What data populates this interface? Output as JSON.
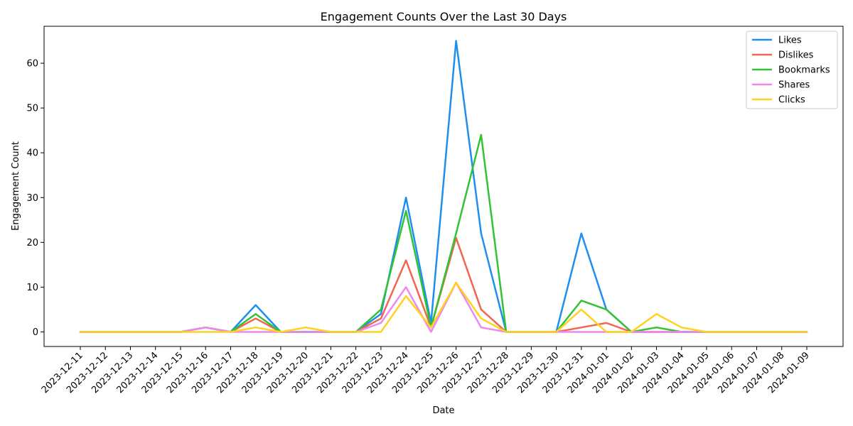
{
  "chart_data": {
    "type": "line",
    "title": "Engagement Counts Over the Last 30 Days",
    "xlabel": "Date",
    "ylabel": "Engagement Count",
    "x": [
      "2023-12-11",
      "2023-12-12",
      "2023-12-13",
      "2023-12-14",
      "2023-12-15",
      "2023-12-16",
      "2023-12-17",
      "2023-12-18",
      "2023-12-19",
      "2023-12-20",
      "2023-12-21",
      "2023-12-22",
      "2023-12-23",
      "2023-12-24",
      "2023-12-25",
      "2023-12-26",
      "2023-12-27",
      "2023-12-28",
      "2023-12-29",
      "2023-12-30",
      "2023-12-31",
      "2024-01-01",
      "2024-01-02",
      "2024-01-03",
      "2024-01-04",
      "2024-01-05",
      "2024-01-06",
      "2024-01-07",
      "2024-01-08",
      "2024-01-09"
    ],
    "ylim": [
      -3.25,
      68.25
    ],
    "yticks": [
      0,
      10,
      20,
      30,
      40,
      50,
      60
    ],
    "grid": false,
    "legend_position": "top-right",
    "series": [
      {
        "name": "Likes",
        "color": "#1f8ef1",
        "values": [
          0,
          0,
          0,
          0,
          0,
          1,
          0,
          6,
          0,
          0,
          0,
          0,
          4,
          30,
          2,
          65,
          22,
          0,
          0,
          0,
          22,
          5,
          0,
          0,
          0,
          0,
          0,
          0,
          0,
          0
        ]
      },
      {
        "name": "Dislikes",
        "color": "#f0664e",
        "values": [
          0,
          0,
          0,
          0,
          0,
          1,
          0,
          3,
          0,
          0,
          0,
          0,
          3,
          16,
          1,
          21,
          5,
          0,
          0,
          0,
          1,
          2,
          0,
          0,
          0,
          0,
          0,
          0,
          0,
          0
        ]
      },
      {
        "name": "Bookmarks",
        "color": "#33c233",
        "values": [
          0,
          0,
          0,
          0,
          0,
          1,
          0,
          4,
          0,
          0,
          0,
          0,
          5,
          27,
          1,
          22,
          44,
          0,
          0,
          0,
          7,
          5,
          0,
          1,
          0,
          0,
          0,
          0,
          0,
          0
        ]
      },
      {
        "name": "Shares",
        "color": "#ee88ee",
        "values": [
          0,
          0,
          0,
          0,
          0,
          1,
          0,
          0,
          0,
          0,
          0,
          0,
          2,
          10,
          0,
          11,
          1,
          0,
          0,
          0,
          0,
          0,
          0,
          0,
          0,
          0,
          0,
          0,
          0,
          0
        ]
      },
      {
        "name": "Clicks",
        "color": "#ffd21f",
        "values": [
          0,
          0,
          0,
          0,
          0,
          0,
          0,
          1,
          0,
          1,
          0,
          0,
          0,
          8,
          1,
          11,
          3,
          0,
          0,
          0,
          5,
          0,
          0,
          4,
          1,
          0,
          0,
          0,
          0,
          0
        ]
      }
    ]
  }
}
